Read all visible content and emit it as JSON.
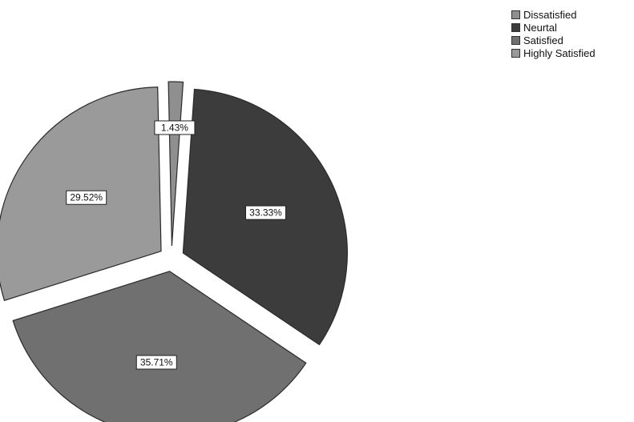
{
  "header": {
    "partial_text": ""
  },
  "chart_data": {
    "type": "pie",
    "title": "",
    "categories": [
      "Dissatisfied",
      "Neurtal",
      "Satisfied",
      "Highly Satisfied"
    ],
    "values": [
      1.43,
      33.33,
      35.71,
      29.52
    ],
    "data_labels": [
      "1.43%",
      "33.33%",
      "35.71%",
      "29.52%"
    ],
    "colors": [
      "#8f8f8f",
      "#3c3c3c",
      "#707070",
      "#9a9a9a"
    ],
    "exploded": true,
    "legend_placement": "top-right"
  }
}
